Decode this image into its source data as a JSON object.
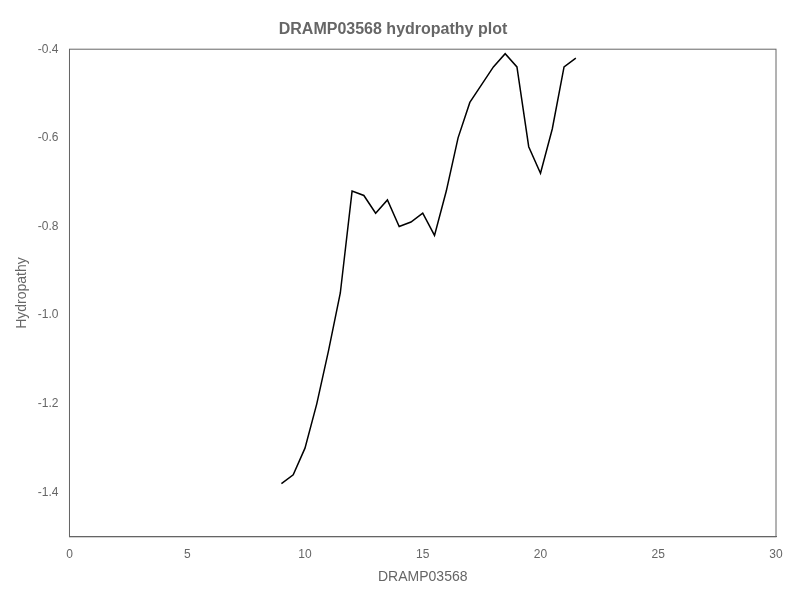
{
  "chart_data": {
    "type": "line",
    "title": "DRAMP03568 hydropathy plot",
    "xlabel": "DRAMP03568",
    "ylabel": "Hydropathy",
    "x": [
      9.0,
      9.5,
      10.0,
      10.5,
      11.0,
      11.5,
      12.0,
      12.5,
      13.0,
      13.5,
      14.0,
      14.5,
      15.0,
      15.5,
      16.0,
      16.5,
      17.0,
      17.5,
      18.0,
      18.5,
      19.0,
      19.5,
      20.0,
      20.5,
      21.0,
      21.5
    ],
    "values": [
      -1.38,
      -1.36,
      -1.3,
      -1.2,
      -1.08,
      -0.95,
      -0.72,
      -0.73,
      -0.77,
      -0.74,
      -0.8,
      -0.79,
      -0.77,
      -0.82,
      -0.72,
      -0.6,
      -0.52,
      -0.48,
      -0.44,
      -0.41,
      -0.44,
      -0.62,
      -0.68,
      -0.58,
      -0.44,
      -0.42
    ],
    "color": "#000000",
    "xlim": [
      0,
      30
    ],
    "xticks": [
      0,
      5,
      10,
      15,
      20,
      25,
      30
    ],
    "ylim": [
      -1.5,
      -0.4
    ],
    "yticks": [
      {
        "value": -1.4,
        "label": "-1.4"
      },
      {
        "value": -1.2,
        "label": "-1.2"
      },
      {
        "value": -1.0,
        "label": "-1.0"
      },
      {
        "value": -0.8,
        "label": "-0.8"
      },
      {
        "value": -0.6,
        "label": "-0.6"
      },
      {
        "value": -0.4,
        "label": "-0.4"
      }
    ],
    "grid": false
  }
}
